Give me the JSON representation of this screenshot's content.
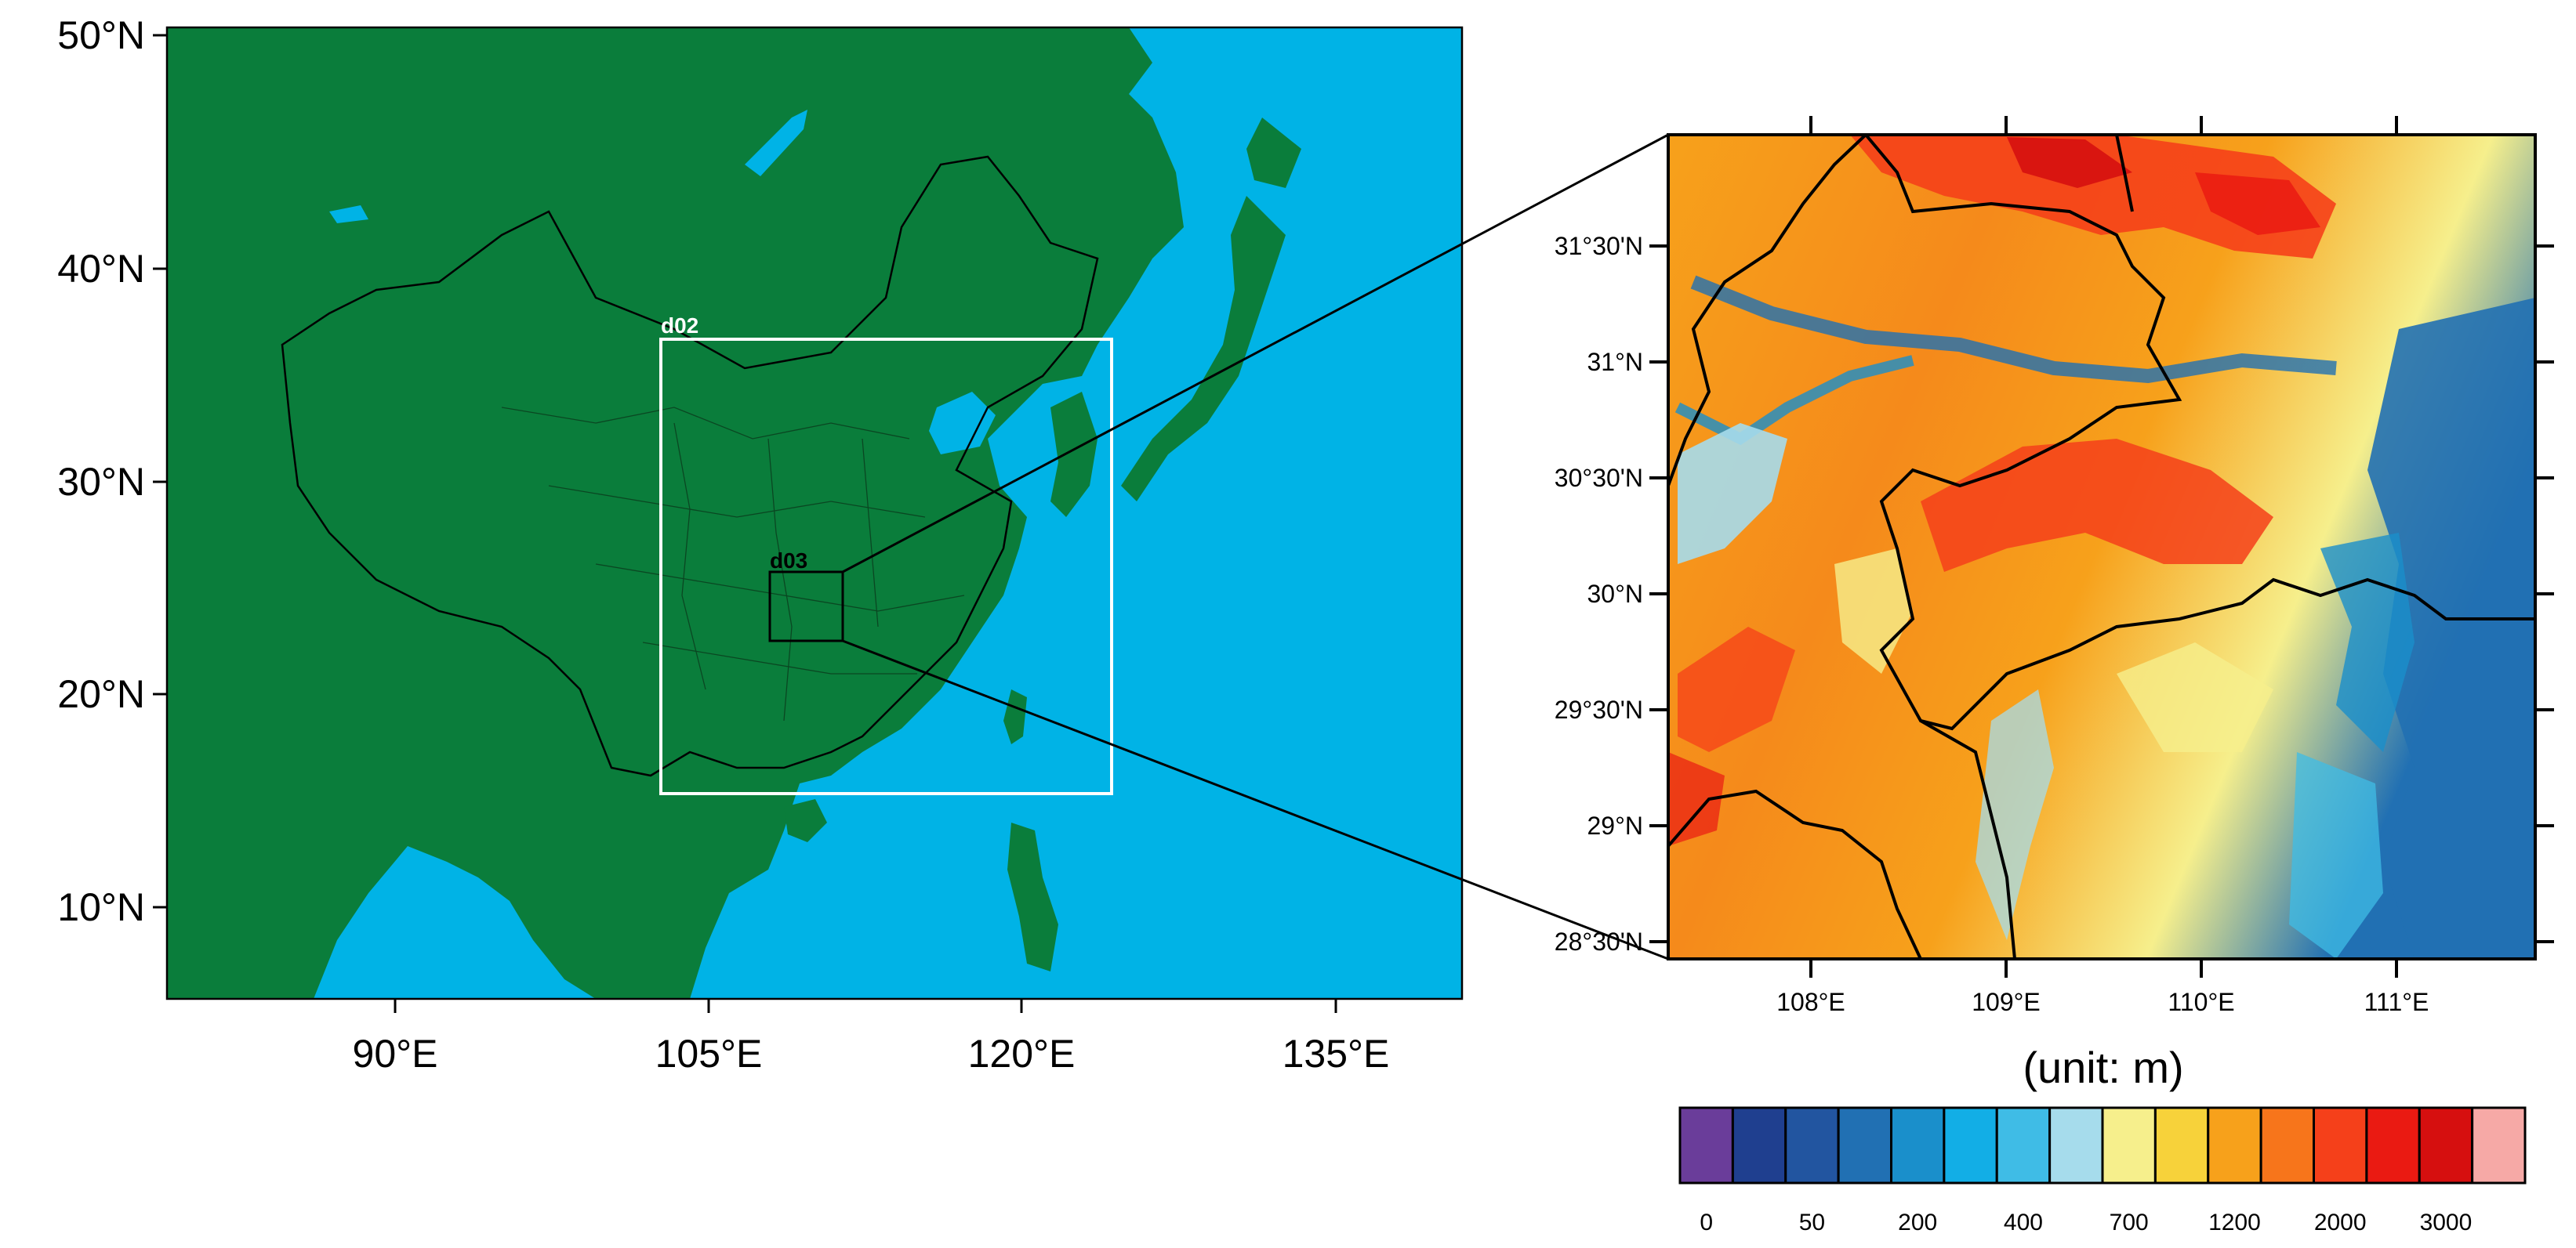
{
  "left_map": {
    "lat_ticks": [
      "50°N",
      "40°N",
      "30°N",
      "20°N",
      "10°N"
    ],
    "lon_ticks": [
      "90°E",
      "105°E",
      "120°E",
      "135°E"
    ],
    "domain_labels": {
      "outer": "d02",
      "inner": "d03"
    },
    "colors": {
      "land": "#0a7d3b",
      "ocean": "#00b3e6",
      "outer_box": "#ffffff",
      "inner_box": "#000000"
    }
  },
  "right_map": {
    "lat_ticks": [
      "31°30'N",
      "31°N",
      "30°30'N",
      "30°N",
      "29°30'N",
      "29°N",
      "28°30'N"
    ],
    "lon_ticks": [
      "108°E",
      "109°E",
      "110°E",
      "111°E"
    ]
  },
  "legend": {
    "title": "(unit: m)",
    "labels": [
      "0",
      "50",
      "200",
      "400",
      "700",
      "1200",
      "2000",
      "3000"
    ],
    "colors": [
      "#6a3d9a",
      "#1f3f8f",
      "#2255a0",
      "#2170b3",
      "#1a8fcb",
      "#12aee6",
      "#3fbce6",
      "#a6dcec",
      "#f6ef8c",
      "#f7d23a",
      "#f7a11b",
      "#f7751b",
      "#f5401a",
      "#ea1a12",
      "#d60f0f",
      "#f6a9a6"
    ]
  }
}
